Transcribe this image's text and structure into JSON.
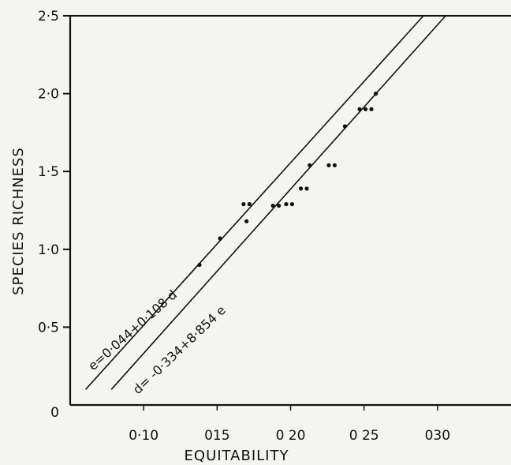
{
  "chart_data": {
    "type": "scatter",
    "xlabel": "EQUITABILITY",
    "ylabel": "SPECIES RICHNESS",
    "xlim": [
      0.05,
      0.35
    ],
    "ylim": [
      0,
      2.5
    ],
    "xticks": [
      {
        "value": 0.1,
        "label": "0·10"
      },
      {
        "value": 0.15,
        "label": "015"
      },
      {
        "value": 0.2,
        "label": "0 20"
      },
      {
        "value": 0.25,
        "label": "0 25"
      },
      {
        "value": 0.3,
        "label": "030"
      }
    ],
    "yticks": [
      {
        "value": 0,
        "label": "0"
      },
      {
        "value": 0.5,
        "label": "0·5"
      },
      {
        "value": 1.0,
        "label": "1·0"
      },
      {
        "value": 1.5,
        "label": "1·5"
      },
      {
        "value": 2.0,
        "label": "2·0"
      },
      {
        "value": 2.5,
        "label": "2·5"
      }
    ],
    "points": [
      [
        0.138,
        0.9
      ],
      [
        0.152,
        1.07
      ],
      [
        0.17,
        1.18
      ],
      [
        0.168,
        1.29
      ],
      [
        0.172,
        1.29
      ],
      [
        0.188,
        1.28
      ],
      [
        0.192,
        1.28
      ],
      [
        0.197,
        1.29
      ],
      [
        0.201,
        1.29
      ],
      [
        0.207,
        1.39
      ],
      [
        0.211,
        1.39
      ],
      [
        0.213,
        1.54
      ],
      [
        0.226,
        1.54
      ],
      [
        0.23,
        1.54
      ],
      [
        0.237,
        1.79
      ],
      [
        0.247,
        1.9
      ],
      [
        0.251,
        1.9
      ],
      [
        0.255,
        1.9
      ],
      [
        0.258,
        2.0
      ]
    ],
    "series": [
      {
        "name": "e=0·044+0·108 d",
        "line": {
          "x0": 0.0605,
          "y0": 0.1,
          "x1": 0.2904,
          "y1": 2.5
        }
      },
      {
        "name": "d= -0·334+8·854 e",
        "line": {
          "x0": 0.078,
          "y0": 0.1,
          "x1": 0.3055,
          "y1": 2.5
        }
      }
    ]
  }
}
